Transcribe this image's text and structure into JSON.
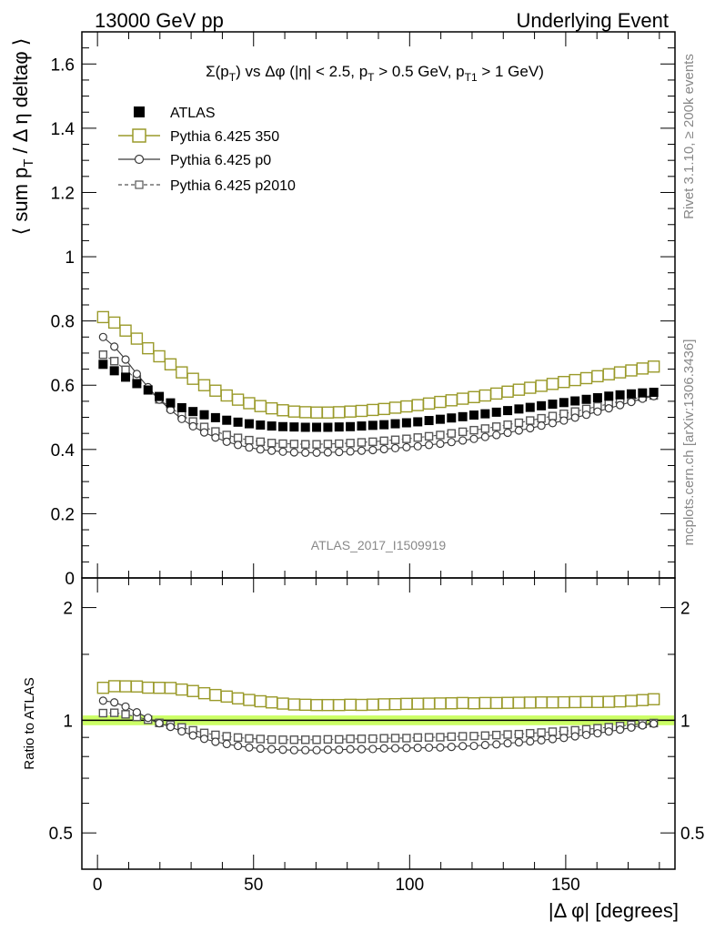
{
  "header": {
    "left": "13000 GeV pp",
    "right": "Underlying Event"
  },
  "side_text": {
    "upper": "Rivet 3.1.10, ≥ 200k events",
    "lower": "mcplots.cern.ch [arXiv:1306.3436]"
  },
  "watermark": "ATLAS_2017_I1509919",
  "colors": {
    "atlas": "#000000",
    "p350": "#9a9a2a",
    "p0": "#3a3a3a",
    "p2010": "#555555",
    "band": "#ccff66"
  },
  "chart_data": [
    {
      "type": "scatter",
      "title": "Σ(pT) vs Δφ (|η| < 2.5, pT > 0.5 GeV, pT1 > 1 GeV)",
      "title_parts": {
        "a": "Σ(p",
        "b": "T",
        "c": ") vs Δφ (|η| < 2.5, p",
        "d": "T",
        "e": " > 0.5 GeV, p",
        "f": "T1",
        "g": " > 1 GeV)"
      },
      "ylabel": "⟨ sum pT / Δ η deltaφ ⟩",
      "ylabel_parts": {
        "a": "⟨ sum p",
        "b": "T",
        "c": " / Δ η deltaφ ⟩"
      },
      "xlabel": "|Δ φ| [degrees]",
      "xlim": [
        -5,
        185
      ],
      "ylim": [
        0,
        1.7
      ],
      "x_ticks": [
        "0",
        "50",
        "100",
        "150"
      ],
      "y_ticks": [
        "0",
        "0.2",
        "0.4",
        "0.6",
        "0.8",
        "1",
        "1.2",
        "1.4",
        "1.6"
      ],
      "legend_position": "top-left",
      "legend": [
        "ATLAS",
        "Pythia 6.425 350",
        "Pythia 6.425 p0",
        "Pythia 6.425 p2010"
      ],
      "x": [
        1.8,
        5.4,
        9.0,
        12.6,
        16.2,
        19.8,
        23.4,
        27.0,
        30.6,
        34.2,
        37.8,
        41.4,
        45.0,
        48.6,
        52.2,
        55.8,
        59.4,
        63.0,
        66.6,
        70.2,
        73.8,
        77.4,
        81.0,
        84.6,
        88.2,
        91.8,
        95.4,
        99.0,
        102.6,
        106.2,
        109.8,
        113.4,
        117.0,
        120.6,
        124.2,
        127.8,
        131.4,
        135.0,
        138.6,
        142.2,
        145.8,
        149.4,
        153.0,
        156.6,
        160.2,
        163.8,
        167.4,
        171.0,
        174.6,
        178.2
      ],
      "series": [
        {
          "name": "ATLAS",
          "marker": "filled-square",
          "values": [
            0.665,
            0.645,
            0.625,
            0.605,
            0.585,
            0.565,
            0.545,
            0.53,
            0.518,
            0.508,
            0.499,
            0.491,
            0.485,
            0.48,
            0.476,
            0.473,
            0.471,
            0.47,
            0.469,
            0.469,
            0.469,
            0.47,
            0.471,
            0.473,
            0.475,
            0.477,
            0.48,
            0.483,
            0.486,
            0.49,
            0.494,
            0.498,
            0.502,
            0.507,
            0.511,
            0.516,
            0.521,
            0.526,
            0.531,
            0.536,
            0.541,
            0.546,
            0.551,
            0.556,
            0.561,
            0.566,
            0.57,
            0.573,
            0.576,
            0.578
          ]
        },
        {
          "name": "Pythia 6.425 350",
          "marker": "open-square",
          "values": [
            0.812,
            0.795,
            0.77,
            0.745,
            0.715,
            0.69,
            0.665,
            0.64,
            0.62,
            0.6,
            0.583,
            0.568,
            0.555,
            0.544,
            0.535,
            0.528,
            0.522,
            0.518,
            0.516,
            0.515,
            0.515,
            0.516,
            0.518,
            0.52,
            0.523,
            0.526,
            0.53,
            0.534,
            0.538,
            0.543,
            0.548,
            0.553,
            0.558,
            0.563,
            0.568,
            0.574,
            0.58,
            0.586,
            0.592,
            0.598,
            0.604,
            0.61,
            0.616,
            0.622,
            0.628,
            0.634,
            0.64,
            0.646,
            0.652,
            0.658
          ]
        },
        {
          "name": "Pythia 6.425 p0",
          "marker": "open-circle",
          "values": [
            0.75,
            0.72,
            0.68,
            0.635,
            0.594,
            0.555,
            0.523,
            0.495,
            0.472,
            0.453,
            0.437,
            0.424,
            0.414,
            0.406,
            0.4,
            0.396,
            0.393,
            0.391,
            0.39,
            0.39,
            0.391,
            0.392,
            0.394,
            0.396,
            0.398,
            0.401,
            0.404,
            0.407,
            0.41,
            0.414,
            0.418,
            0.423,
            0.428,
            0.433,
            0.439,
            0.445,
            0.452,
            0.459,
            0.466,
            0.474,
            0.482,
            0.49,
            0.499,
            0.508,
            0.518,
            0.528,
            0.538,
            0.548,
            0.558,
            0.566
          ]
        },
        {
          "name": "Pythia 6.425 p2010",
          "marker": "dashed-open-square",
          "values": [
            0.695,
            0.675,
            0.648,
            0.618,
            0.587,
            0.556,
            0.53,
            0.507,
            0.487,
            0.47,
            0.456,
            0.445,
            0.436,
            0.429,
            0.424,
            0.42,
            0.418,
            0.417,
            0.416,
            0.416,
            0.417,
            0.418,
            0.42,
            0.422,
            0.424,
            0.427,
            0.43,
            0.433,
            0.437,
            0.441,
            0.445,
            0.45,
            0.455,
            0.46,
            0.465,
            0.471,
            0.477,
            0.483,
            0.49,
            0.497,
            0.504,
            0.511,
            0.518,
            0.526,
            0.534,
            0.542,
            0.55,
            0.557,
            0.563,
            0.568
          ]
        }
      ]
    },
    {
      "type": "scatter",
      "ylabel": "Ratio to ATLAS",
      "xlabel": "|Δ φ| [degrees]",
      "xlim": [
        -5,
        185
      ],
      "ylim": [
        0.4,
        2.4
      ],
      "y_scale": "log",
      "y_ticks": [
        "0.5",
        "1",
        "2"
      ],
      "reference_band": [
        0.97,
        1.03
      ],
      "series": [
        {
          "name": "Pythia 6.425 350",
          "values": [
            1.221,
            1.233,
            1.232,
            1.231,
            1.222,
            1.221,
            1.22,
            1.208,
            1.197,
            1.181,
            1.168,
            1.157,
            1.144,
            1.133,
            1.124,
            1.116,
            1.108,
            1.102,
            1.1,
            1.098,
            1.098,
            1.098,
            1.1,
            1.099,
            1.101,
            1.103,
            1.104,
            1.106,
            1.107,
            1.108,
            1.109,
            1.11,
            1.112,
            1.11,
            1.112,
            1.112,
            1.113,
            1.114,
            1.115,
            1.116,
            1.116,
            1.117,
            1.118,
            1.119,
            1.119,
            1.12,
            1.123,
            1.127,
            1.132,
            1.138
          ]
        },
        {
          "name": "Pythia 6.425 p0",
          "values": [
            1.128,
            1.116,
            1.088,
            1.05,
            1.015,
            0.982,
            0.96,
            0.934,
            0.911,
            0.892,
            0.876,
            0.864,
            0.854,
            0.846,
            0.84,
            0.837,
            0.834,
            0.832,
            0.832,
            0.832,
            0.834,
            0.834,
            0.837,
            0.837,
            0.838,
            0.841,
            0.842,
            0.843,
            0.844,
            0.845,
            0.846,
            0.849,
            0.853,
            0.854,
            0.859,
            0.862,
            0.868,
            0.873,
            0.878,
            0.884,
            0.891,
            0.897,
            0.906,
            0.914,
            0.923,
            0.933,
            0.944,
            0.956,
            0.969,
            0.979
          ]
        },
        {
          "name": "Pythia 6.425 p2010",
          "values": [
            1.045,
            1.047,
            1.037,
            1.021,
            1.003,
            0.984,
            0.972,
            0.957,
            0.94,
            0.925,
            0.914,
            0.906,
            0.899,
            0.894,
            0.891,
            0.888,
            0.887,
            0.887,
            0.887,
            0.887,
            0.889,
            0.889,
            0.892,
            0.892,
            0.893,
            0.895,
            0.896,
            0.896,
            0.899,
            0.9,
            0.901,
            0.904,
            0.906,
            0.907,
            0.91,
            0.913,
            0.916,
            0.918,
            0.923,
            0.927,
            0.932,
            0.936,
            0.94,
            0.946,
            0.952,
            0.958,
            0.965,
            0.972,
            0.978,
            0.983
          ]
        }
      ]
    }
  ]
}
